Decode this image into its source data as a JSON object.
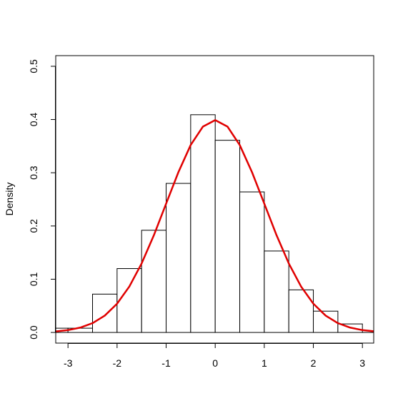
{
  "chart_data": {
    "type": "histogram",
    "ylabel": "Density",
    "bins": [
      -3.5,
      -3,
      -2.5,
      -2,
      -1.5,
      -1,
      -0.5,
      0,
      0.5,
      1,
      1.5,
      2,
      2.5,
      3,
      3.5
    ],
    "values": [
      0.008,
      0.008,
      0.072,
      0.12,
      0.192,
      0.28,
      0.409,
      0.361,
      0.264,
      0.153,
      0.08,
      0.04,
      0.016,
      0
    ],
    "color": "#ffffff",
    "curve": {
      "color": "#e00000",
      "x": [
        -3.25,
        -3,
        -2.75,
        -2.5,
        -2.25,
        -2,
        -1.75,
        -1.5,
        -1.25,
        -1,
        -0.75,
        -0.5,
        -0.25,
        0,
        0.25,
        0.5,
        0.75,
        1,
        1.25,
        1.5,
        1.75,
        2,
        2.25,
        2.5,
        2.75,
        3,
        3.25
      ],
      "y": [
        0.002,
        0.0044,
        0.0091,
        0.0175,
        0.0317,
        0.054,
        0.0863,
        0.1295,
        0.1826,
        0.242,
        0.3011,
        0.3521,
        0.3867,
        0.3989,
        0.3867,
        0.3521,
        0.3011,
        0.242,
        0.1826,
        0.1295,
        0.0863,
        0.054,
        0.0317,
        0.0175,
        0.0091,
        0.0044,
        0.002
      ]
    },
    "xlim": [
      -3.25,
      3.23
    ],
    "ylim": [
      -0.02,
      0.52
    ],
    "xticks": [
      -3,
      -2,
      -1,
      0,
      1,
      2,
      3
    ],
    "yticks": [
      {
        "value": 0,
        "label": "0.0"
      },
      0.1,
      0.2,
      0.3,
      0.4,
      0.5
    ]
  }
}
